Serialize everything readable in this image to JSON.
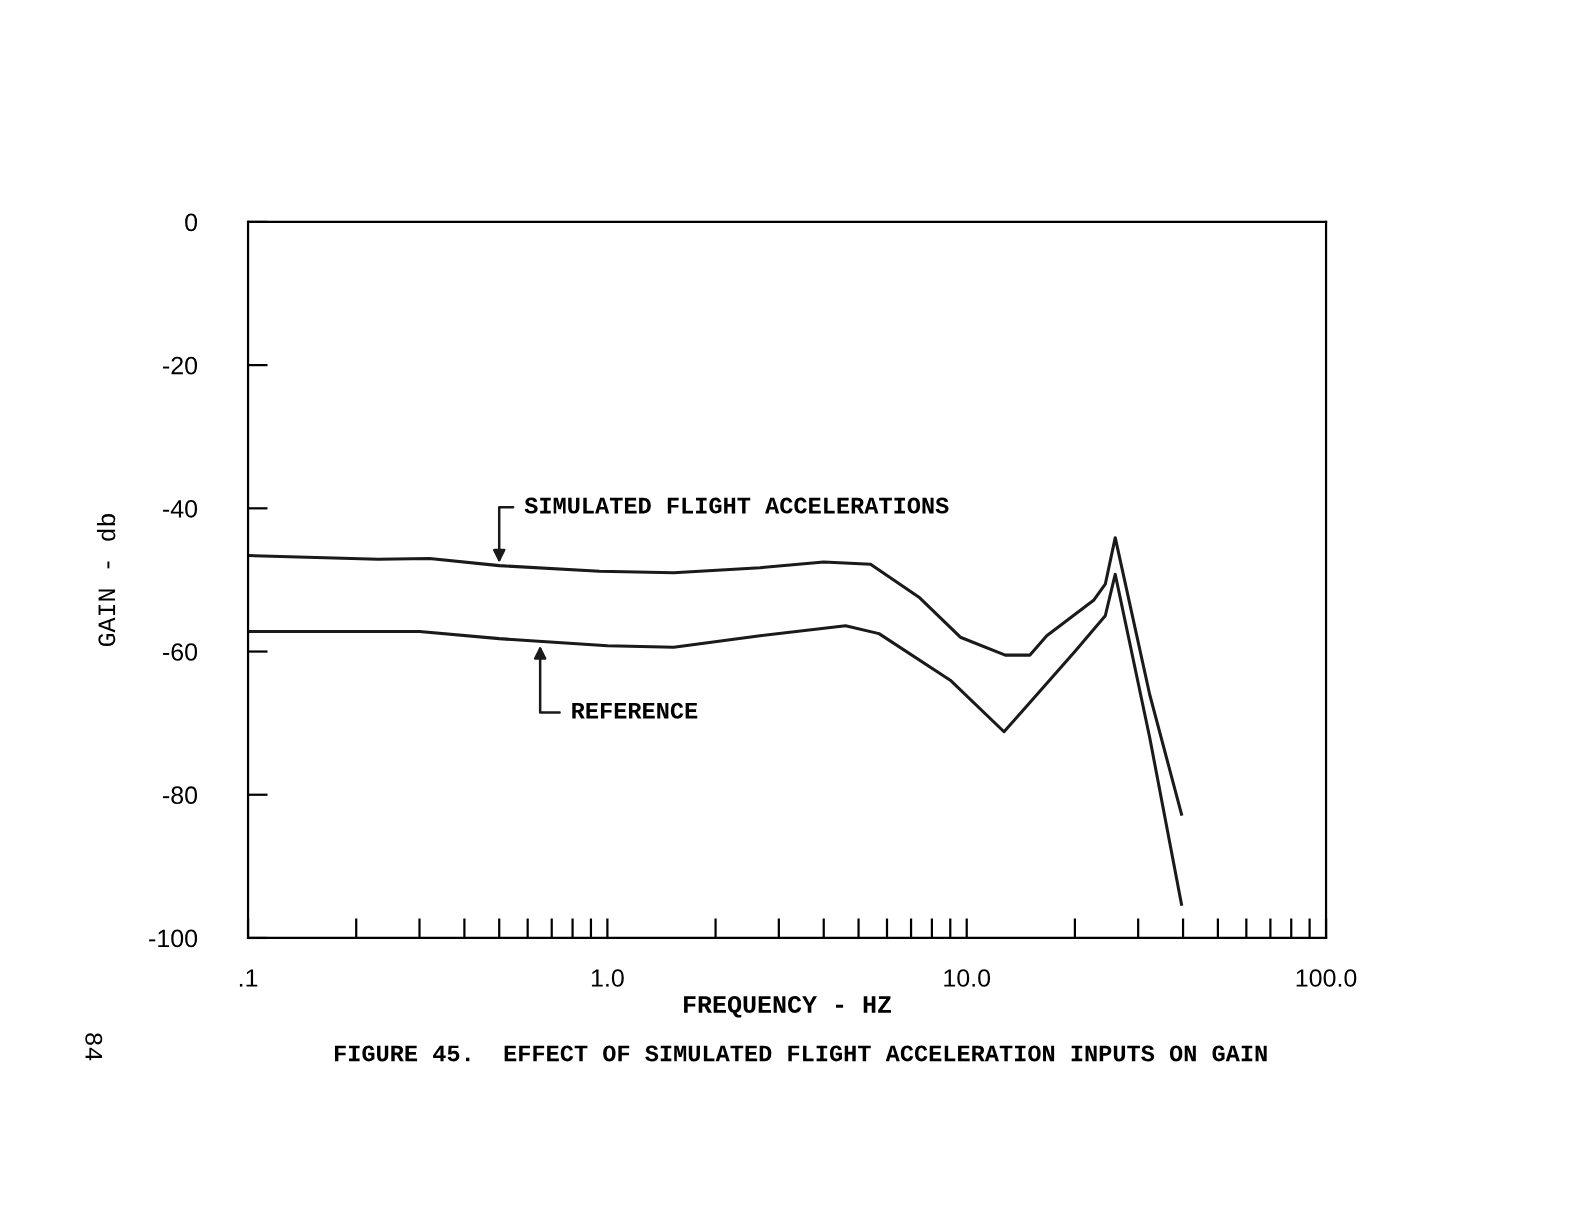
{
  "chart_data": {
    "type": "line",
    "xlabel": "FREQUENCY - HZ",
    "ylabel": "GAIN - db",
    "log": "x",
    "xlim": [
      0.1,
      100
    ],
    "ylim": [
      -100,
      0
    ],
    "xticks": [
      {
        "value": 0.1,
        "label": ".1"
      },
      {
        "value": 0.2,
        "label": null
      },
      {
        "value": 0.3,
        "label": null
      },
      {
        "value": 0.4,
        "label": null
      },
      {
        "value": 0.5,
        "label": null
      },
      {
        "value": 0.6,
        "label": null
      },
      {
        "value": 0.7,
        "label": null
      },
      {
        "value": 0.8,
        "label": null
      },
      {
        "value": 0.9,
        "label": null
      },
      {
        "value": 1,
        "label": "1.0"
      },
      {
        "value": 2,
        "label": null
      },
      {
        "value": 3,
        "label": null
      },
      {
        "value": 4,
        "label": null
      },
      {
        "value": 5,
        "label": null
      },
      {
        "value": 6,
        "label": null
      },
      {
        "value": 7,
        "label": null
      },
      {
        "value": 8,
        "label": null
      },
      {
        "value": 9,
        "label": null
      },
      {
        "value": 10,
        "label": "10.0"
      },
      {
        "value": 20,
        "label": null
      },
      {
        "value": 30,
        "label": null
      },
      {
        "value": 40,
        "label": null
      },
      {
        "value": 50,
        "label": null
      },
      {
        "value": 60,
        "label": null
      },
      {
        "value": 70,
        "label": null
      },
      {
        "value": 80,
        "label": null
      },
      {
        "value": 90,
        "label": null
      },
      {
        "value": 100,
        "label": "100.0"
      }
    ],
    "yticks": [
      -100,
      -80,
      -60,
      -40,
      -20,
      0
    ],
    "grid": false,
    "marker": "none",
    "line_style": "solid",
    "series": [
      {
        "color": "#1a1a1a",
        "x": [
          0.1,
          0.23,
          0.32,
          0.5,
          0.95,
          1.53,
          2.66,
          4.0,
          5.4,
          7.4,
          9.6,
          12.8,
          15.0,
          16.7,
          22.6,
          24.3,
          25.9,
          32.3,
          39.6
        ],
        "values": [
          -46.6,
          -47.1,
          -47.0,
          -48.0,
          -48.8,
          -49.0,
          -48.3,
          -47.5,
          -47.8,
          -52.5,
          -58.0,
          -60.5,
          -60.5,
          -57.8,
          -52.8,
          -50.6,
          -44.1,
          -66,
          -82.7
        ]
      },
      {
        "color": "#1a1a1a",
        "x": [
          0.1,
          0.3,
          0.5,
          1.0,
          1.53,
          2.66,
          4.6,
          5.7,
          9.0,
          12.7,
          14.7,
          20,
          24.3,
          25.9,
          32.3,
          39.6
        ],
        "values": [
          -57.2,
          -57.2,
          -58.2,
          -59.2,
          -59.4,
          -57.8,
          -56.4,
          -57.5,
          -64,
          -71.2,
          -67.6,
          -60,
          -55,
          -49.2,
          -72,
          -95.3
        ]
      }
    ],
    "annotations": [
      {
        "text": "SIMULATED FLIGHT ACCELERATIONS",
        "x": 0.5,
        "y": -48.0
      },
      {
        "text": "REFERENCE",
        "x": 0.65,
        "y": -58.8
      },
      "FIGURE 45.  EFFECT OF SIMULATED FLIGHT ACCELERATION INPUTS ON GAIN",
      "84"
    ]
  }
}
